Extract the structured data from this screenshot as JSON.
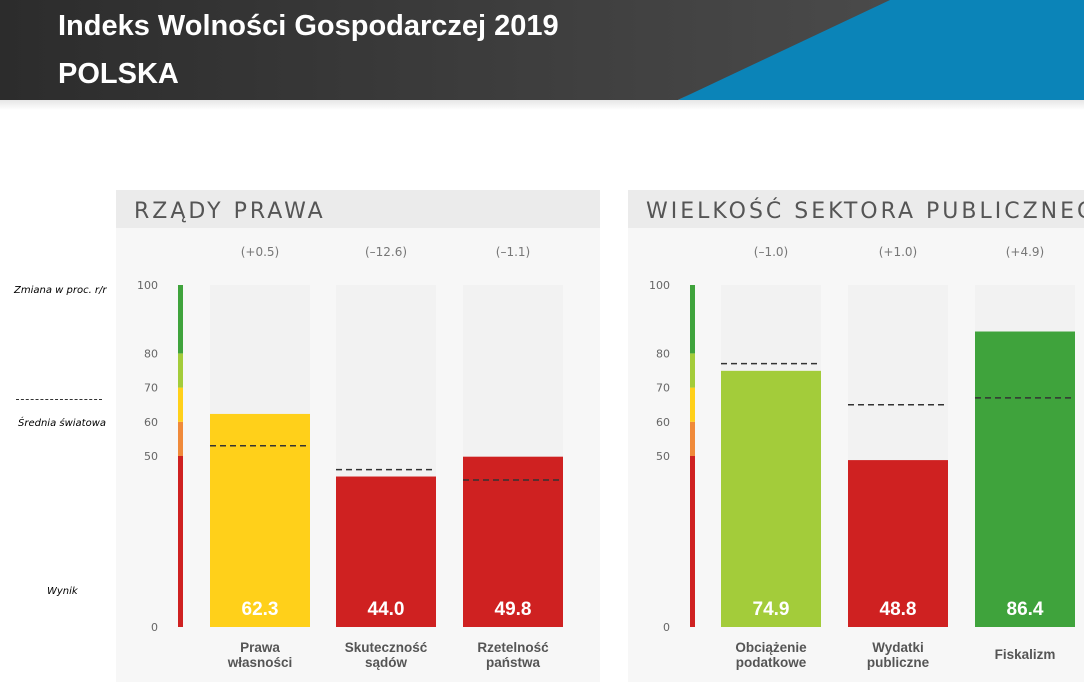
{
  "header": {
    "title": "Indeks Wolności Gospodarczej 2019",
    "subtitle": "POLSKA"
  },
  "legend_labels": {
    "change": "Zmiana w proc. r/r",
    "world_average": "Średnia światowa",
    "score": "Wynik"
  },
  "colors": {
    "banner_dark": "#3a3a3a",
    "banner_blue": "#0b84b8",
    "panel_header": "#ebebeb",
    "panel_bg": "#f7f7f7",
    "bar_track": "#f2f2f2",
    "red": "#cf2121",
    "orange": "#f08a3a",
    "yellow": "#ffd01a",
    "light_green": "#a3cc3a",
    "green": "#3fa33c"
  },
  "chart_data": [
    {
      "type": "bar",
      "title": "RZĄDY PRAWA",
      "categories": [
        "Prawa\nwłasności",
        "Skuteczność\nsądów",
        "Rzetelność\npaństwa"
      ],
      "series": [
        {
          "values": [
            62.3,
            44.0,
            49.8
          ],
          "value_labels": [
            "62.3",
            "44.0",
            "49.8"
          ]
        },
        {
          "name": "Średnia światowa",
          "values": [
            53,
            46,
            43
          ]
        }
      ],
      "changes": [
        "(+0.5)",
        "(–12.6)",
        "(–1.1)"
      ],
      "bar_colors": [
        "#ffd01a",
        "#cf2121",
        "#cf2121"
      ],
      "yticks": [
        0,
        50,
        60,
        70,
        80,
        100
      ],
      "ylim": [
        0,
        100
      ]
    },
    {
      "type": "bar",
      "title": "WIELKOŚĆ SEKTORA PUBLICZNEGO",
      "categories": [
        "Obciążenie\npodatkowe",
        "Wydatki\npubliczne",
        "Fiskalizm"
      ],
      "series": [
        {
          "values": [
            74.9,
            48.8,
            86.4
          ],
          "value_labels": [
            "74.9",
            "48.8",
            "86.4"
          ]
        },
        {
          "name": "Średnia światowa",
          "values": [
            77,
            65,
            67
          ]
        }
      ],
      "changes": [
        "(–1.0)",
        "(+1.0)",
        "(+4.9)"
      ],
      "bar_colors": [
        "#a3cc3a",
        "#cf2121",
        "#3fa33c"
      ],
      "yticks": [
        0,
        50,
        60,
        70,
        80,
        100
      ],
      "ylim": [
        0,
        100
      ]
    }
  ]
}
